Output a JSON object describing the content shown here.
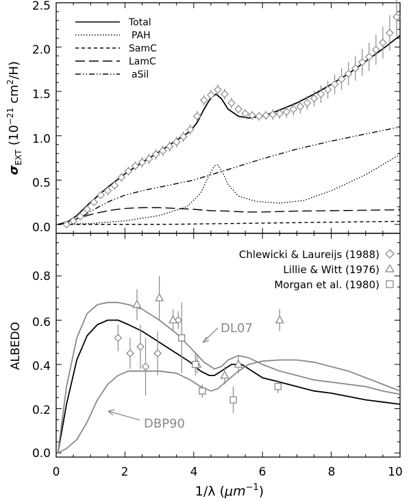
{
  "chart_data": [
    {
      "type": "line",
      "panel": "top",
      "ylabel_symbol": "σ",
      "ylabel_sub": "EXT",
      "ylabel_rest": "(10",
      "ylabel_exp": "−21",
      "ylabel_unit": "cm",
      "ylabel_unit_exp": "2",
      "ylabel_tail": "/H)",
      "xlim": [
        0,
        10
      ],
      "ylim": [
        -0.05,
        2.55
      ],
      "yticks": [
        "0.0",
        "0.5",
        "1.0",
        "1.5",
        "2.0",
        "2.5"
      ],
      "legend_position": "top-left",
      "series": [
        {
          "name": "Total",
          "style": "solid",
          "x": [
            0.05,
            0.3,
            0.6,
            1.0,
            1.5,
            2.0,
            2.5,
            3.0,
            3.5,
            3.9,
            4.1,
            4.3,
            4.5,
            4.65,
            4.8,
            5.0,
            5.3,
            5.6,
            6.0,
            6.5,
            7.0,
            7.5,
            8.0,
            8.5,
            9.0,
            9.5,
            10.0
          ],
          "y": [
            0.0,
            0.02,
            0.1,
            0.25,
            0.42,
            0.57,
            0.7,
            0.82,
            0.95,
            1.05,
            1.15,
            1.3,
            1.43,
            1.47,
            1.42,
            1.3,
            1.22,
            1.2,
            1.22,
            1.29,
            1.37,
            1.47,
            1.58,
            1.7,
            1.84,
            1.98,
            2.13
          ]
        },
        {
          "name": "PAH",
          "style": "dotted",
          "x": [
            0.05,
            1.0,
            2.0,
            3.0,
            3.8,
            4.2,
            4.4,
            4.6,
            4.7,
            4.85,
            5.0,
            5.3,
            5.8,
            6.5,
            7.2,
            8.0,
            9.0,
            10.0
          ],
          "y": [
            0.0,
            0.01,
            0.04,
            0.1,
            0.2,
            0.35,
            0.52,
            0.66,
            0.67,
            0.58,
            0.45,
            0.32,
            0.26,
            0.24,
            0.27,
            0.38,
            0.56,
            0.79
          ]
        },
        {
          "name": "SamC",
          "style": "short-dash",
          "x": [
            0.05,
            1.0,
            2.0,
            3.0,
            4.0,
            5.0,
            6.0,
            7.0,
            8.0,
            9.0,
            10.0
          ],
          "y": [
            0.0,
            0.0,
            0.0,
            0.0,
            0.005,
            0.01,
            0.015,
            0.02,
            0.025,
            0.03,
            0.035
          ]
        },
        {
          "name": "LamC",
          "style": "long-dash",
          "x": [
            0.05,
            0.4,
            0.8,
            1.2,
            1.6,
            2.0,
            2.5,
            3.0,
            3.5,
            4.0,
            4.5,
            5.0,
            5.5,
            6.0,
            7.0,
            8.0,
            9.0,
            10.0
          ],
          "y": [
            0.0,
            0.04,
            0.09,
            0.13,
            0.16,
            0.18,
            0.19,
            0.19,
            0.18,
            0.17,
            0.155,
            0.15,
            0.14,
            0.14,
            0.15,
            0.155,
            0.16,
            0.165
          ]
        },
        {
          "name": "aSil",
          "style": "dash-dot-dot",
          "x": [
            0.05,
            0.4,
            0.8,
            1.2,
            1.6,
            2.0,
            2.5,
            3.0,
            3.5,
            4.0,
            4.5,
            5.0,
            6.0,
            7.0,
            8.0,
            9.0,
            10.0
          ],
          "y": [
            0.0,
            0.02,
            0.1,
            0.19,
            0.27,
            0.33,
            0.38,
            0.42,
            0.46,
            0.5,
            0.56,
            0.62,
            0.74,
            0.85,
            0.94,
            1.02,
            1.1
          ]
        }
      ],
      "observations": {
        "name": "Chlewicki & Laureijs (1988)",
        "marker": "diamond",
        "x": [
          0.3,
          0.5,
          0.7,
          0.9,
          1.1,
          1.3,
          1.5,
          1.7,
          1.9,
          2.1,
          2.3,
          2.5,
          2.7,
          2.9,
          3.1,
          3.3,
          3.5,
          3.7,
          3.9,
          4.1,
          4.3,
          4.5,
          4.7,
          4.9,
          5.1,
          5.3,
          5.5,
          5.7,
          5.9,
          6.1,
          6.3,
          6.5,
          6.7,
          6.9,
          7.1,
          7.3,
          7.5,
          7.7,
          7.9,
          8.1,
          8.3,
          8.5,
          8.7,
          8.9,
          9.1,
          9.3,
          9.5,
          9.7,
          9.9
        ],
        "y": [
          0.0,
          0.04,
          0.09,
          0.17,
          0.25,
          0.33,
          0.38,
          0.44,
          0.53,
          0.6,
          0.66,
          0.7,
          0.74,
          0.79,
          0.83,
          0.88,
          0.93,
          0.99,
          1.07,
          1.22,
          1.4,
          1.46,
          1.52,
          1.47,
          1.37,
          1.3,
          1.25,
          1.23,
          1.22,
          1.23,
          1.24,
          1.25,
          1.27,
          1.3,
          1.33,
          1.37,
          1.42,
          1.47,
          1.52,
          1.58,
          1.64,
          1.7,
          1.76,
          1.83,
          1.89,
          1.97,
          2.05,
          2.16,
          2.34
        ],
        "err": [
          0.02,
          0.03,
          0.03,
          0.04,
          0.04,
          0.04,
          0.05,
          0.05,
          0.05,
          0.05,
          0.05,
          0.06,
          0.06,
          0.06,
          0.06,
          0.06,
          0.06,
          0.06,
          0.06,
          0.06,
          0.06,
          0.06,
          0.06,
          0.06,
          0.06,
          0.05,
          0.05,
          0.05,
          0.05,
          0.05,
          0.06,
          0.06,
          0.07,
          0.07,
          0.08,
          0.08,
          0.09,
          0.1,
          0.1,
          0.11,
          0.12,
          0.13,
          0.14,
          0.15,
          0.16,
          0.17,
          0.18,
          0.2,
          0.22
        ]
      }
    },
    {
      "type": "line",
      "panel": "bottom",
      "ylabel": "ALBEDO",
      "xlabel_pre": "1/λ  (",
      "xlabel_unit": "μm",
      "xlabel_exp": "−1",
      "xlabel_post": ")",
      "xlim": [
        0,
        10
      ],
      "ylim": [
        0,
        1.0
      ],
      "xticks": [
        "0",
        "2",
        "4",
        "6",
        "8",
        "10"
      ],
      "yticks": [
        "0.0",
        "0.2",
        "0.4",
        "0.6",
        "0.8"
      ],
      "legend_position": "top-right",
      "series": [
        {
          "name": "model",
          "color": "#000000",
          "x": [
            0.05,
            0.3,
            0.6,
            0.9,
            1.2,
            1.5,
            1.8,
            2.1,
            2.5,
            3.0,
            3.5,
            3.9,
            4.2,
            4.45,
            4.6,
            4.8,
            5.1,
            5.4,
            5.7,
            6.0,
            6.5,
            7.0,
            7.5,
            8.0,
            8.5,
            9.0,
            9.5,
            10.0
          ],
          "y": [
            0.0,
            0.22,
            0.42,
            0.53,
            0.58,
            0.6,
            0.6,
            0.58,
            0.55,
            0.5,
            0.45,
            0.41,
            0.37,
            0.35,
            0.35,
            0.37,
            0.4,
            0.4,
            0.37,
            0.34,
            0.32,
            0.3,
            0.28,
            0.27,
            0.255,
            0.24,
            0.23,
            0.22
          ]
        },
        {
          "name": "DL07",
          "color": "#888888",
          "x": [
            0.05,
            0.3,
            0.6,
            0.9,
            1.2,
            1.5,
            1.8,
            2.1,
            2.5,
            3.0,
            3.5,
            4.0,
            4.3,
            4.6,
            4.8,
            5.0,
            5.3,
            5.6,
            6.0,
            6.5,
            7.0,
            7.5,
            8.0,
            8.5,
            9.0,
            9.5,
            10.0
          ],
          "y": [
            0.0,
            0.3,
            0.52,
            0.63,
            0.67,
            0.68,
            0.68,
            0.67,
            0.65,
            0.6,
            0.54,
            0.46,
            0.41,
            0.38,
            0.39,
            0.42,
            0.44,
            0.43,
            0.4,
            0.37,
            0.35,
            0.33,
            0.32,
            0.31,
            0.3,
            0.28,
            0.265
          ]
        },
        {
          "name": "DBP90",
          "color": "#888888",
          "x": [
            0.05,
            0.3,
            0.6,
            0.9,
            1.2,
            1.5,
            1.8,
            2.1,
            2.5,
            3.0,
            3.5,
            3.9,
            4.2,
            4.5,
            4.7,
            5.0,
            5.3,
            5.6,
            6.0,
            6.5,
            7.0,
            7.5,
            8.0,
            8.5,
            9.0,
            9.5,
            10.0
          ],
          "y": [
            0.0,
            0.02,
            0.06,
            0.14,
            0.24,
            0.31,
            0.35,
            0.37,
            0.37,
            0.37,
            0.36,
            0.33,
            0.3,
            0.28,
            0.29,
            0.33,
            0.37,
            0.4,
            0.415,
            0.42,
            0.42,
            0.41,
            0.39,
            0.37,
            0.34,
            0.31,
            0.28
          ]
        }
      ],
      "observations": [
        {
          "name": "Chlewicki & Laureijs (1988)",
          "marker": "diamond",
          "x": [
            1.8,
            2.15,
            2.45,
            2.6,
            2.95,
            3.55
          ],
          "y": [
            0.52,
            0.45,
            0.48,
            0.39,
            0.45,
            0.6
          ],
          "err": [
            0.06,
            0.07,
            0.1,
            0.13,
            0.1,
            0.04
          ]
        },
        {
          "name": "Lillie & Witt (1976)",
          "marker": "triangle",
          "x": [
            2.35,
            3.0,
            3.4,
            4.1,
            4.9,
            5.3,
            6.5
          ],
          "y": [
            0.67,
            0.7,
            0.6,
            0.4,
            0.35,
            0.4,
            0.6
          ],
          "err": [
            0.07,
            0.1,
            0.05,
            0.04,
            0.04,
            0.04,
            0.05
          ]
        },
        {
          "name": "Morgan et al. (1980)",
          "marker": "square",
          "x": [
            3.65,
            4.05,
            4.25,
            5.15,
            6.45
          ],
          "y": [
            0.52,
            0.4,
            0.28,
            0.24,
            0.3
          ],
          "err": [
            0.16,
            0.05,
            0.03,
            0.06,
            0.03
          ]
        }
      ],
      "annotations": {
        "dl07": "DL07",
        "dbp90": "DBP90"
      }
    }
  ],
  "legend_top": {
    "total": "Total",
    "pah": "PAH",
    "samc": "SamC",
    "lamc": "LamC",
    "asil": "aSil"
  },
  "legend_bottom": {
    "chlewicki": "Chlewicki & Laureijs (1988)",
    "lillie": "Lillie & Witt (1976)",
    "morgan": "Morgan et al. (1980)"
  },
  "colors": {
    "model": "#000000",
    "grey": "#888888"
  }
}
